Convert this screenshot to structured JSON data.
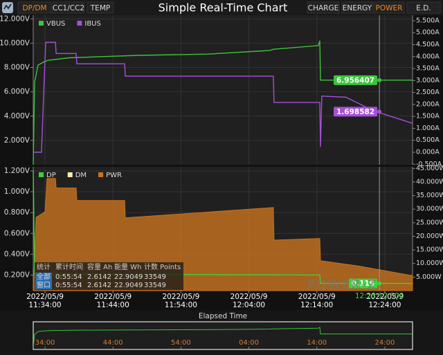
{
  "header": {
    "tabs_left": [
      "DP/DM",
      "CC1/CC2",
      "TEMP"
    ],
    "active_left": 0,
    "title": "Simple Real-Time Chart",
    "tabs_right": [
      "CHARGE",
      "ENERGY",
      "POWER",
      "E.D."
    ],
    "active_right": 2
  },
  "chart_data": [
    {
      "type": "line",
      "xlim": [
        "11:32:16",
        "12:28:05"
      ],
      "xticks": [
        "11:34:00",
        "11:44:00",
        "11:54:00",
        "12:04:00",
        "12:14:00",
        "12:24:00"
      ],
      "ylim": [
        0,
        12.3
      ],
      "yticks": [
        {
          "value": 2,
          "label": "2.000V"
        },
        {
          "value": 4,
          "label": "4.000V"
        },
        {
          "value": 6,
          "label": "6.000V"
        },
        {
          "value": 8,
          "label": "8.000V"
        },
        {
          "value": 10,
          "label": "10.000V"
        },
        {
          "value": 12,
          "label": "12.000V"
        }
      ],
      "y2lim": [
        -0.52,
        5.73
      ],
      "y2ticks": [
        {
          "value": -0.5,
          "label": "-0.500A"
        },
        {
          "value": 0,
          "label": "0.000A"
        },
        {
          "value": 0.5,
          "label": "0.500A"
        },
        {
          "value": 1,
          "label": "1.000A"
        },
        {
          "value": 1.5,
          "label": "1.500A"
        },
        {
          "value": 2,
          "label": "2.000A"
        },
        {
          "value": 2.5,
          "label": "2.500A"
        },
        {
          "value": 3,
          "label": "3.000A"
        },
        {
          "value": 3.5,
          "label": "3.500A"
        },
        {
          "value": 4,
          "label": "4.000A"
        },
        {
          "value": 4.5,
          "label": "4.500A"
        },
        {
          "value": 5,
          "label": "5.000A"
        },
        {
          "value": 5.5,
          "label": "5.500A"
        }
      ],
      "grid": true,
      "series": [
        {
          "name": "VBUS",
          "color": "#3cc43c",
          "x": [
            "11:32:16",
            "11:32:28",
            "11:32:59",
            "11:34:00",
            "11:34:31",
            "11:37:34",
            "11:47:45",
            "11:57:56",
            "12:07:06",
            "12:07:36",
            "12:14:13",
            "12:14:26",
            "12:14:32",
            "12:28:05"
          ],
          "values": [
            0,
            6.8,
            8.2,
            8.5,
            8.6,
            8.8,
            9.0,
            9.1,
            9.4,
            9.5,
            9.8,
            10.2,
            6.96,
            6.96
          ],
          "cursor_value": 6.956407
        },
        {
          "name": "IBUS",
          "color": "#a650d8",
          "axis": "y2",
          "x": [
            "11:32:16",
            "11:33:29",
            "11:34:06",
            "11:35:32",
            "11:35:38",
            "11:38:35",
            "11:38:41",
            "11:45:43",
            "11:45:49",
            "12:07:36",
            "12:07:42",
            "12:14:26",
            "12:14:32",
            "12:14:44",
            "12:18:18",
            "12:22:22",
            "12:28:05"
          ],
          "values": [
            0,
            0,
            4.6,
            4.6,
            4.13,
            4.13,
            3.7,
            3.7,
            3.18,
            3.18,
            2.08,
            2.08,
            0.23,
            2.35,
            2.3,
            1.73,
            1.21
          ],
          "cursor_value": 1.698582
        }
      ]
    },
    {
      "type": "line",
      "xlim": [
        "11:32:16",
        "12:28:05"
      ],
      "xticks": [
        "11:34:00",
        "11:44:00",
        "11:54:00",
        "12:04:00",
        "12:14:00",
        "12:24:00"
      ],
      "xtick_dates": [
        "2022/05/9",
        "2022/05/9",
        "2022/05/9",
        "2022/05/9",
        "2022/05/9",
        "2022/05/9"
      ],
      "ylim": [
        0.05,
        1.24
      ],
      "yticks": [
        {
          "value": 0.2,
          "label": "0.200V"
        },
        {
          "value": 0.4,
          "label": "0.400V"
        },
        {
          "value": 0.6,
          "label": "0.600V"
        },
        {
          "value": 0.8,
          "label": "0.800V"
        },
        {
          "value": 1,
          "label": "1.000V"
        },
        {
          "value": 1.2,
          "label": "1.200V"
        }
      ],
      "y2lim": [
        0,
        45.6
      ],
      "y2ticks": [
        {
          "value": 5,
          "label": "5.000W"
        },
        {
          "value": 10,
          "label": "10.000W"
        },
        {
          "value": 15,
          "label": "15.000W"
        },
        {
          "value": 20,
          "label": "20.000W"
        },
        {
          "value": 25,
          "label": "25.000W"
        },
        {
          "value": 30,
          "label": "30.000W"
        },
        {
          "value": 35,
          "label": "35.000W"
        },
        {
          "value": 40,
          "label": "40.000W"
        },
        {
          "value": 45,
          "label": "45.000W"
        }
      ],
      "grid": true,
      "series": [
        {
          "name": "DP",
          "color": "#3cd43c",
          "x": [
            "11:32:16",
            "11:32:28",
            "12:14:26",
            "12:14:32",
            "12:28:05"
          ],
          "values": [
            1.2,
            0.21,
            0.2,
            0.119,
            0.119
          ],
          "cursor_value": 0.119
        },
        {
          "name": "DM",
          "color": "#f3efb0",
          "x": [],
          "values": []
        },
        {
          "name": "PWR",
          "color": "#c8731e",
          "axis": "y2",
          "fill": "area",
          "x": [
            "11:32:16",
            "11:32:41",
            "11:34:00",
            "11:34:18",
            "11:35:32",
            "11:35:38",
            "11:38:35",
            "11:38:41",
            "11:45:43",
            "11:45:49",
            "12:07:36",
            "12:07:42",
            "12:14:26",
            "12:14:32",
            "12:20:20",
            "12:28:05"
          ],
          "values": [
            0,
            27,
            29,
            41.3,
            41.3,
            37.8,
            37.8,
            33.2,
            33.2,
            26.8,
            30.6,
            18.6,
            19.2,
            11,
            9,
            5.5
          ]
        }
      ]
    }
  ],
  "cursor": {
    "time": "12:23:12.500"
  },
  "stats_table": {
    "header": [
      "统计",
      "累计时间",
      "容量 Ah",
      "能量 Wh",
      "计数 Points"
    ],
    "rows": [
      [
        "全部",
        "0:55:54",
        "2.6142",
        "22.9049",
        "33549"
      ],
      [
        "窗口",
        "0:55:54",
        "2.6142",
        "22.9049",
        "33549"
      ]
    ]
  },
  "watermark": "POWER-Z",
  "navigator": {
    "label": "Elapsed Time",
    "ticks": [
      "34:00",
      "44:00",
      "54:00",
      "04:00",
      "14:00",
      "24:00"
    ]
  }
}
